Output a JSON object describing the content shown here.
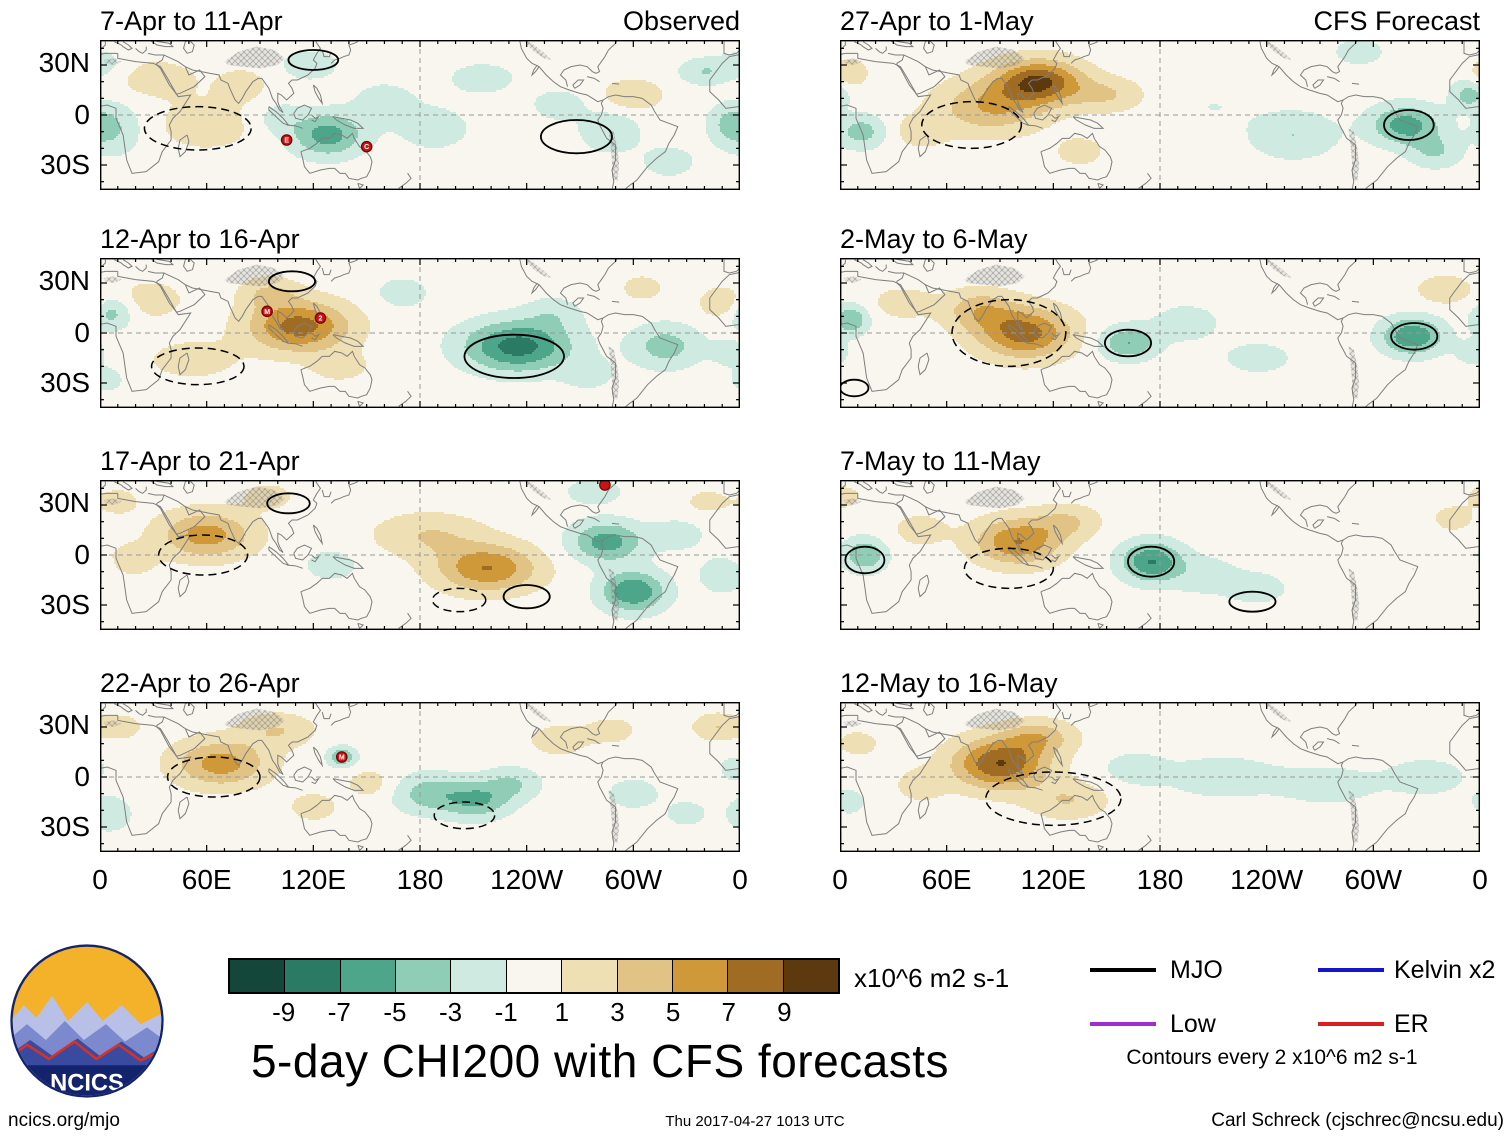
{
  "title": "5-day CHI200 with CFS forecasts",
  "logo": {
    "text": "NCICS"
  },
  "footer": {
    "left": "ncics.org/mjo",
    "center": "Thu 2017-04-27 1013 UTC",
    "right": "Carl Schreck (cjschrec@ncsu.edu)"
  },
  "legend": {
    "items": [
      {
        "label": "MJO",
        "color": "#000000"
      },
      {
        "label": "Low",
        "color": "#9b30d0"
      },
      {
        "label": "Kelvin x2",
        "color": "#1414cc"
      },
      {
        "label": "ER",
        "color": "#d81e1e"
      }
    ],
    "note": "Contours every 2 x10^6 m2 s-1"
  },
  "chart_data": {
    "type": "heatmap",
    "subtype": "filled-contour-map-grid",
    "lon_range": [
      0,
      360
    ],
    "lat_range": [
      -45,
      45
    ],
    "grid": {
      "equator_dashed": true,
      "dateline_dashed": true
    },
    "columns": [
      {
        "label": "Observed"
      },
      {
        "label": "CFS Forecast"
      }
    ],
    "lat_ticks": [
      "30N",
      "0",
      "30S"
    ],
    "lat_tick_values": [
      30,
      0,
      -30
    ],
    "lon_ticks": [
      "0",
      "60E",
      "120E",
      "180",
      "120W",
      "60W",
      "0"
    ],
    "lon_tick_values": [
      0,
      60,
      120,
      180,
      240,
      300,
      360
    ],
    "colorbar": {
      "levels": [
        -9,
        -7,
        -5,
        -3,
        -1,
        1,
        3,
        5,
        7,
        9
      ],
      "tick_labels": [
        "-9",
        "-7",
        "-5",
        "-3",
        "-1",
        "1",
        "3",
        "5",
        "7",
        "9"
      ],
      "colors": [
        "#15463a",
        "#2a7a64",
        "#4da58a",
        "#8fcdb6",
        "#cfeae0",
        "#f8f6ee",
        "#efdfb4",
        "#e2c386",
        "#cf9838",
        "#a06b22",
        "#5c390e"
      ],
      "unit": "x10^6 m2 s-1"
    },
    "panels": [
      {
        "title": "7-Apr to 11-Apr",
        "column": "observed",
        "features": [
          [
            8,
            -8,
            16,
            16,
            -3
          ],
          [
            2,
            30,
            14,
            10,
            -2
          ],
          [
            30,
            22,
            26,
            12,
            2
          ],
          [
            60,
            -6,
            30,
            16,
            2
          ],
          [
            80,
            18,
            14,
            10,
            2
          ],
          [
            100,
            -2,
            14,
            10,
            -2
          ],
          [
            128,
            -12,
            20,
            13,
            -6
          ],
          [
            118,
            30,
            14,
            8,
            -3
          ],
          [
            160,
            8,
            18,
            12,
            -2
          ],
          [
            188,
            -8,
            22,
            14,
            -2
          ],
          [
            215,
            22,
            20,
            10,
            -2
          ],
          [
            258,
            6,
            16,
            10,
            -2
          ],
          [
            300,
            12,
            16,
            9,
            3
          ],
          [
            287,
            -10,
            16,
            12,
            -3
          ],
          [
            320,
            -28,
            16,
            10,
            -2
          ],
          [
            340,
            26,
            14,
            8,
            -3
          ],
          [
            354,
            -6,
            12,
            12,
            -3
          ]
        ],
        "contours": [
          [
            268,
            -13,
            20,
            10,
            "solid"
          ],
          [
            120,
            33,
            14,
            6,
            "solid"
          ],
          [
            55,
            -8,
            30,
            13,
            "dashed"
          ]
        ],
        "storms": [
          [
            105,
            -15,
            "E"
          ],
          [
            150,
            -19,
            "C"
          ]
        ]
      },
      {
        "title": "12-Apr to 16-Apr",
        "column": "observed",
        "features": [
          [
            6,
            12,
            12,
            10,
            -4
          ],
          [
            4,
            -28,
            10,
            8,
            -2
          ],
          [
            28,
            20,
            20,
            12,
            2
          ],
          [
            52,
            -16,
            26,
            12,
            2
          ],
          [
            112,
            4,
            28,
            15,
            8
          ],
          [
            95,
            24,
            16,
            9,
            3
          ],
          [
            135,
            -20,
            16,
            9,
            2
          ],
          [
            170,
            24,
            16,
            10,
            -2
          ],
          [
            235,
            -8,
            30,
            15,
            -8
          ],
          [
            255,
            12,
            16,
            10,
            -2
          ],
          [
            275,
            -25,
            14,
            9,
            -2
          ],
          [
            318,
            -8,
            20,
            13,
            -4
          ],
          [
            305,
            27,
            12,
            8,
            2
          ],
          [
            350,
            18,
            12,
            9,
            3
          ],
          [
            354,
            -12,
            10,
            8,
            -2
          ]
        ],
        "contours": [
          [
            233,
            -14,
            28,
            13,
            "solid"
          ],
          [
            55,
            -20,
            26,
            11,
            "dashed"
          ],
          [
            108,
            31,
            13,
            6,
            "solid"
          ]
        ],
        "storms": [
          [
            94,
            13,
            "M"
          ],
          [
            124,
            9,
            "2"
          ]
        ]
      },
      {
        "title": "17-Apr to 21-Apr",
        "column": "observed",
        "features": [
          [
            60,
            12,
            26,
            14,
            6
          ],
          [
            18,
            -3,
            14,
            10,
            2
          ],
          [
            10,
            32,
            12,
            8,
            2
          ],
          [
            95,
            35,
            14,
            8,
            2
          ],
          [
            130,
            -6,
            16,
            10,
            -2
          ],
          [
            185,
            12,
            30,
            13,
            3
          ],
          [
            218,
            -8,
            28,
            14,
            7
          ],
          [
            285,
            8,
            20,
            12,
            -6
          ],
          [
            300,
            -22,
            18,
            12,
            -7
          ],
          [
            278,
            38,
            14,
            7,
            -3
          ],
          [
            325,
            12,
            16,
            10,
            -2
          ],
          [
            350,
            -12,
            12,
            10,
            -3
          ],
          [
            342,
            32,
            12,
            7,
            2
          ]
        ],
        "contours": [
          [
            58,
            0,
            25,
            12,
            "dashed"
          ],
          [
            106,
            31,
            12,
            6,
            "solid"
          ],
          [
            240,
            -25,
            13,
            7,
            "solid"
          ],
          [
            202,
            -27,
            15,
            7,
            "dashed"
          ]
        ],
        "storms": [
          [
            284,
            42,
            ""
          ]
        ]
      },
      {
        "title": "22-Apr to 26-Apr",
        "column": "observed",
        "features": [
          [
            5,
            -22,
            12,
            10,
            -3
          ],
          [
            12,
            30,
            12,
            8,
            2
          ],
          [
            68,
            8,
            26,
            14,
            6
          ],
          [
            100,
            28,
            20,
            10,
            3
          ],
          [
            136,
            12,
            8,
            6,
            -5
          ],
          [
            152,
            -4,
            14,
            9,
            2
          ],
          [
            120,
            -18,
            14,
            9,
            2
          ],
          [
            185,
            -10,
            20,
            12,
            -4
          ],
          [
            212,
            -14,
            18,
            11,
            -5
          ],
          [
            232,
            -4,
            16,
            10,
            -3
          ],
          [
            258,
            22,
            18,
            10,
            2
          ],
          [
            288,
            28,
            14,
            8,
            2
          ],
          [
            300,
            -10,
            16,
            10,
            -2
          ],
          [
            330,
            -22,
            12,
            8,
            -2
          ],
          [
            347,
            30,
            13,
            8,
            3
          ],
          [
            356,
            5,
            8,
            8,
            -2
          ]
        ],
        "contours": [
          [
            64,
            0,
            26,
            12,
            "dashed"
          ],
          [
            205,
            -23,
            17,
            8,
            "dashed"
          ]
        ],
        "storms": [
          [
            136,
            12,
            "M"
          ]
        ]
      },
      {
        "title": "27-Apr to 1-May",
        "column": "forecast",
        "features": [
          [
            5,
            25,
            10,
            8,
            3
          ],
          [
            12,
            -10,
            14,
            10,
            -4
          ],
          [
            45,
            -10,
            16,
            10,
            2
          ],
          [
            112,
            20,
            24,
            13,
            9
          ],
          [
            85,
            5,
            30,
            16,
            5
          ],
          [
            150,
            12,
            20,
            10,
            3
          ],
          [
            135,
            -22,
            14,
            9,
            2
          ],
          [
            210,
            5,
            22,
            12,
            -1
          ],
          [
            255,
            -12,
            24,
            14,
            -3
          ],
          [
            318,
            -6,
            20,
            12,
            -6
          ],
          [
            335,
            -22,
            15,
            10,
            -3
          ],
          [
            354,
            12,
            10,
            9,
            -4
          ],
          [
            292,
            38,
            12,
            7,
            -3
          ]
        ],
        "contours": [
          [
            74,
            -6,
            28,
            14,
            "dashed"
          ],
          [
            320,
            -6,
            14,
            9,
            "solid"
          ]
        ],
        "storms": []
      },
      {
        "title": "2-May to 6-May",
        "column": "forecast",
        "features": [
          [
            6,
            8,
            10,
            9,
            -5
          ],
          [
            35,
            18,
            18,
            10,
            2
          ],
          [
            104,
            0,
            26,
            15,
            8
          ],
          [
            78,
            14,
            20,
            12,
            4
          ],
          [
            162,
            -6,
            16,
            10,
            -5
          ],
          [
            195,
            6,
            20,
            12,
            -2
          ],
          [
            235,
            -15,
            20,
            10,
            -2
          ],
          [
            322,
            -2,
            17,
            11,
            -7
          ],
          [
            340,
            26,
            14,
            8,
            3
          ],
          [
            356,
            -12,
            10,
            8,
            -2
          ],
          [
            260,
            12,
            16,
            9,
            -1
          ]
        ],
        "contours": [
          [
            95,
            0,
            32,
            20,
            "dashed"
          ],
          [
            162,
            -6,
            13,
            8,
            "solid"
          ],
          [
            323,
            -2,
            13,
            8,
            "solid"
          ],
          [
            8,
            -33,
            8,
            5,
            "solid"
          ]
        ],
        "storms": []
      },
      {
        "title": "7-May to 11-May",
        "column": "forecast",
        "features": [
          [
            14,
            0,
            12,
            10,
            -5
          ],
          [
            2,
            35,
            10,
            7,
            2
          ],
          [
            45,
            15,
            16,
            10,
            2
          ],
          [
            100,
            8,
            24,
            14,
            7
          ],
          [
            128,
            20,
            18,
            10,
            3
          ],
          [
            175,
            -4,
            17,
            12,
            -7
          ],
          [
            205,
            -12,
            20,
            12,
            -2
          ],
          [
            235,
            -20,
            18,
            10,
            -2
          ],
          [
            285,
            10,
            20,
            12,
            -1
          ],
          [
            322,
            -8,
            16,
            10,
            -1
          ],
          [
            345,
            22,
            12,
            8,
            2
          ]
        ],
        "contours": [
          [
            14,
            -3,
            11,
            8,
            "solid"
          ],
          [
            95,
            -8,
            25,
            12,
            "dashed"
          ],
          [
            175,
            -4,
            13,
            9,
            "solid"
          ],
          [
            232,
            -28,
            13,
            6,
            "solid"
          ]
        ],
        "storms": []
      },
      {
        "title": "12-May to 16-May",
        "column": "forecast",
        "features": [
          [
            90,
            8,
            26,
            15,
            9
          ],
          [
            112,
            24,
            20,
            10,
            4
          ],
          [
            128,
            -14,
            22,
            11,
            3
          ],
          [
            10,
            20,
            12,
            8,
            2
          ],
          [
            5,
            -15,
            10,
            8,
            -2
          ],
          [
            45,
            -5,
            14,
            10,
            2
          ],
          [
            165,
            5,
            18,
            10,
            -2
          ],
          [
            215,
            0,
            35,
            14,
            -2
          ],
          [
            275,
            -5,
            28,
            12,
            -2
          ],
          [
            330,
            0,
            24,
            12,
            -2
          ],
          [
            302,
            32,
            12,
            7,
            -1
          ]
        ],
        "contours": [
          [
            120,
            -13,
            38,
            16,
            "dashed"
          ]
        ],
        "storms": []
      }
    ]
  }
}
